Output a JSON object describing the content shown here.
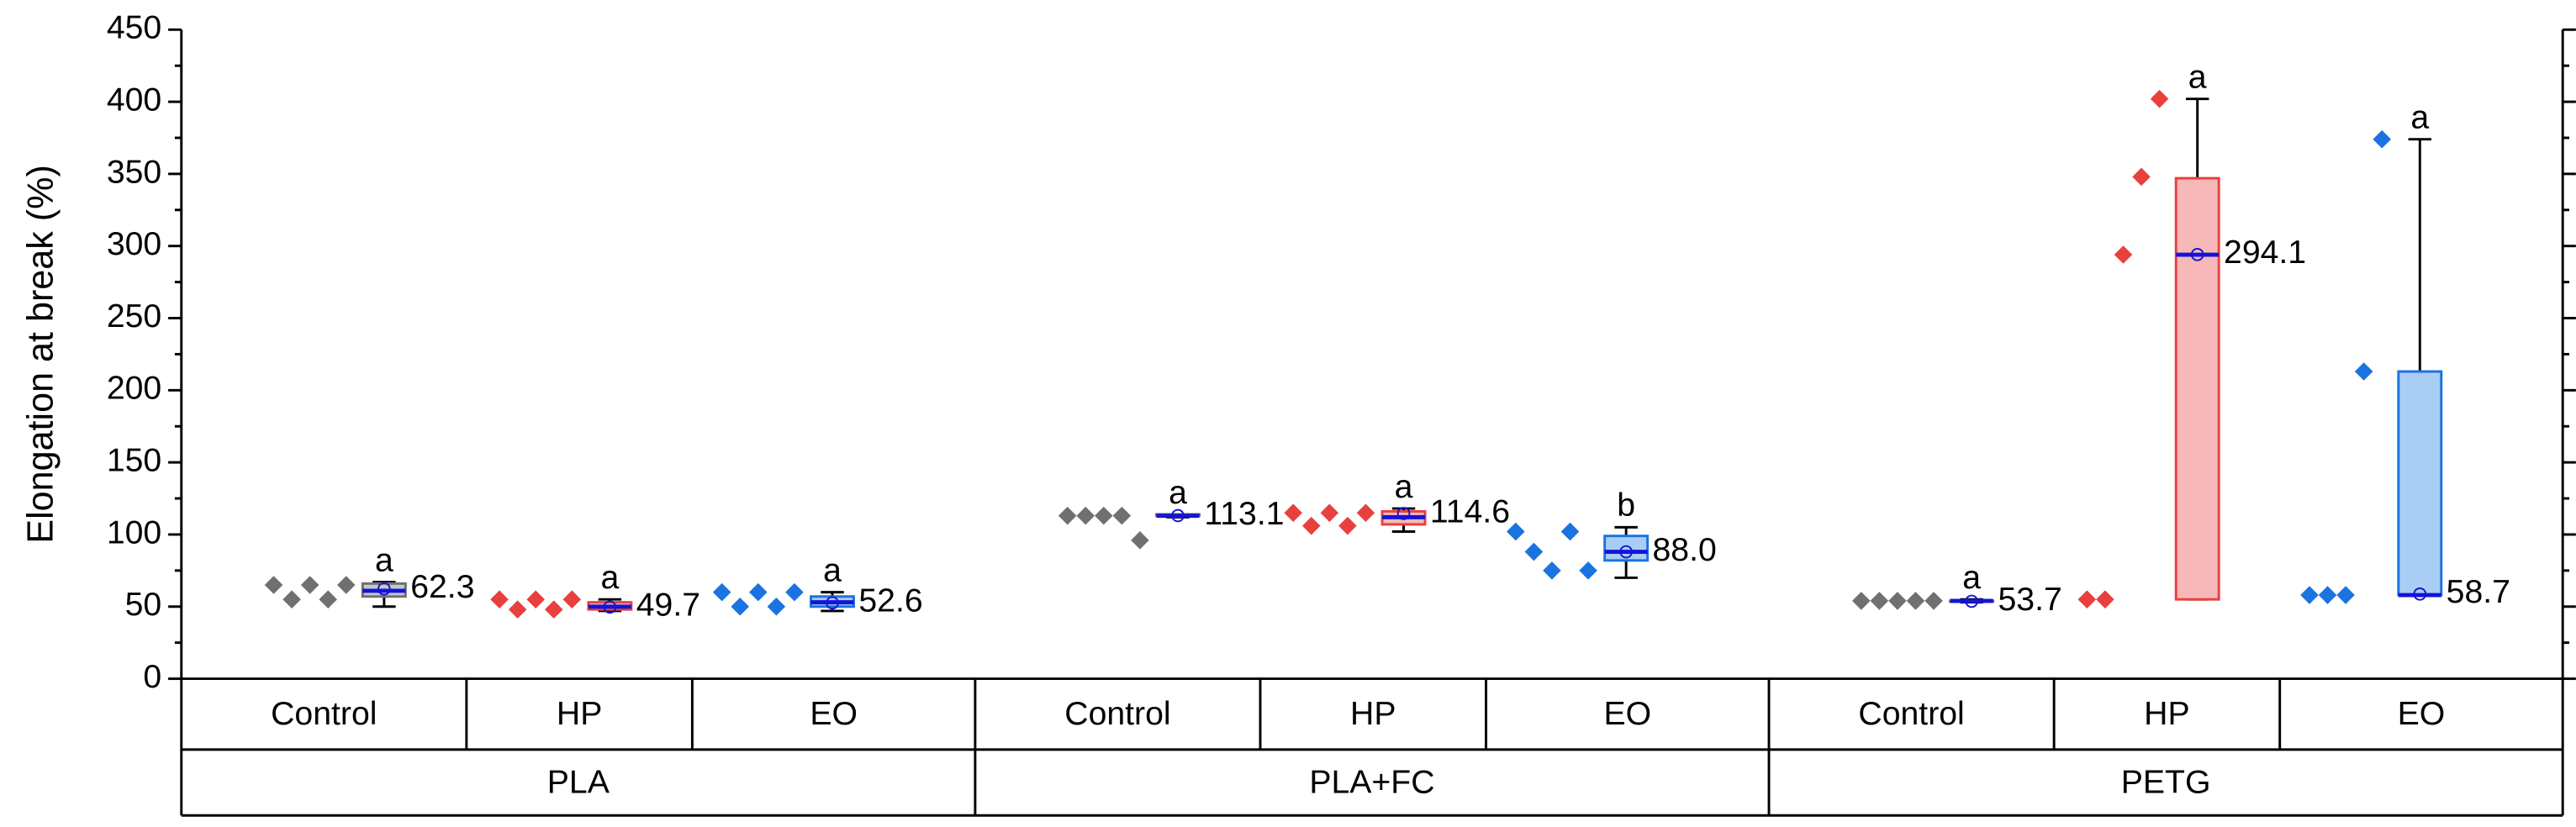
{
  "chart_data": {
    "type": "box",
    "y_label": "Elongation at break (%)",
    "ylim": [
      0,
      450
    ],
    "yticks": [
      0,
      50,
      100,
      150,
      200,
      250,
      300,
      350,
      400,
      450
    ],
    "families": [
      {
        "name": "PLA",
        "groups": [
          {
            "name": "Control",
            "color": "#707070",
            "fill": "#c8c8c8",
            "points": [
              65,
              55,
              65,
              55,
              65
            ],
            "box": {
              "min": 50,
              "q1": 57,
              "median": 61,
              "q3": 66,
              "max": 67
            },
            "mean": 62.3,
            "letter": "a"
          },
          {
            "name": "HP",
            "color": "#e8403f",
            "fill": "#f6b8b8",
            "points": [
              55,
              48,
              55,
              48,
              55
            ],
            "box": {
              "min": 47,
              "q1": 48,
              "median": 50,
              "q3": 53,
              "max": 55
            },
            "mean": 49.7,
            "letter": "a"
          },
          {
            "name": "EO",
            "color": "#1a73e0",
            "fill": "#a9cdf5",
            "points": [
              60,
              50,
              60,
              50,
              60
            ],
            "box": {
              "min": 47,
              "q1": 50,
              "median": 53,
              "q3": 57,
              "max": 60
            },
            "mean": 52.6,
            "letter": "a"
          }
        ]
      },
      {
        "name": "PLA+FC",
        "groups": [
          {
            "name": "Control",
            "color": "#707070",
            "fill": "#c8c8c8",
            "points": [
              113,
              113,
              113,
              113,
              96
            ],
            "box": {
              "min": 112,
              "q1": 113,
              "median": 113,
              "q3": 114,
              "max": 114
            },
            "mean": 113.1,
            "letter": "a"
          },
          {
            "name": "HP",
            "color": "#e8403f",
            "fill": "#f6b8b8",
            "points": [
              115,
              106,
              115,
              106,
              115
            ],
            "box": {
              "min": 102,
              "q1": 107,
              "median": 112,
              "q3": 116,
              "max": 118
            },
            "mean": 114.6,
            "letter": "a"
          },
          {
            "name": "EO",
            "color": "#1a73e0",
            "fill": "#a9cdf5",
            "points": [
              102,
              88,
              75,
              102,
              75
            ],
            "box": {
              "min": 70,
              "q1": 82,
              "median": 88,
              "q3": 99,
              "max": 105
            },
            "mean": 88,
            "mean_label": "88.0",
            "letter": "b"
          }
        ]
      },
      {
        "name": "PETG",
        "groups": [
          {
            "name": "Control",
            "color": "#707070",
            "fill": "#c8c8c8",
            "points": [
              54,
              54,
              54,
              54,
              54
            ],
            "box": {
              "min": 53,
              "q1": 54,
              "median": 54,
              "q3": 54,
              "max": 55
            },
            "mean": 53.7,
            "letter": "a"
          },
          {
            "name": "HP",
            "color": "#e8403f",
            "fill": "#f6b8b8",
            "points": [
              55,
              55,
              294,
              348,
              402
            ],
            "box": {
              "min": 55,
              "q1": 55,
              "median": 294,
              "q3": 347,
              "max": 402
            },
            "mean": 294.1,
            "letter": "a"
          },
          {
            "name": "EO",
            "color": "#1a73e0",
            "fill": "#a9cdf5",
            "points": [
              58,
              58,
              58,
              213,
              374
            ],
            "box": {
              "min": 58,
              "q1": 58,
              "median": 58,
              "q3": 213,
              "max": 374
            },
            "mean": 58.7,
            "letter": "a"
          }
        ]
      }
    ]
  }
}
